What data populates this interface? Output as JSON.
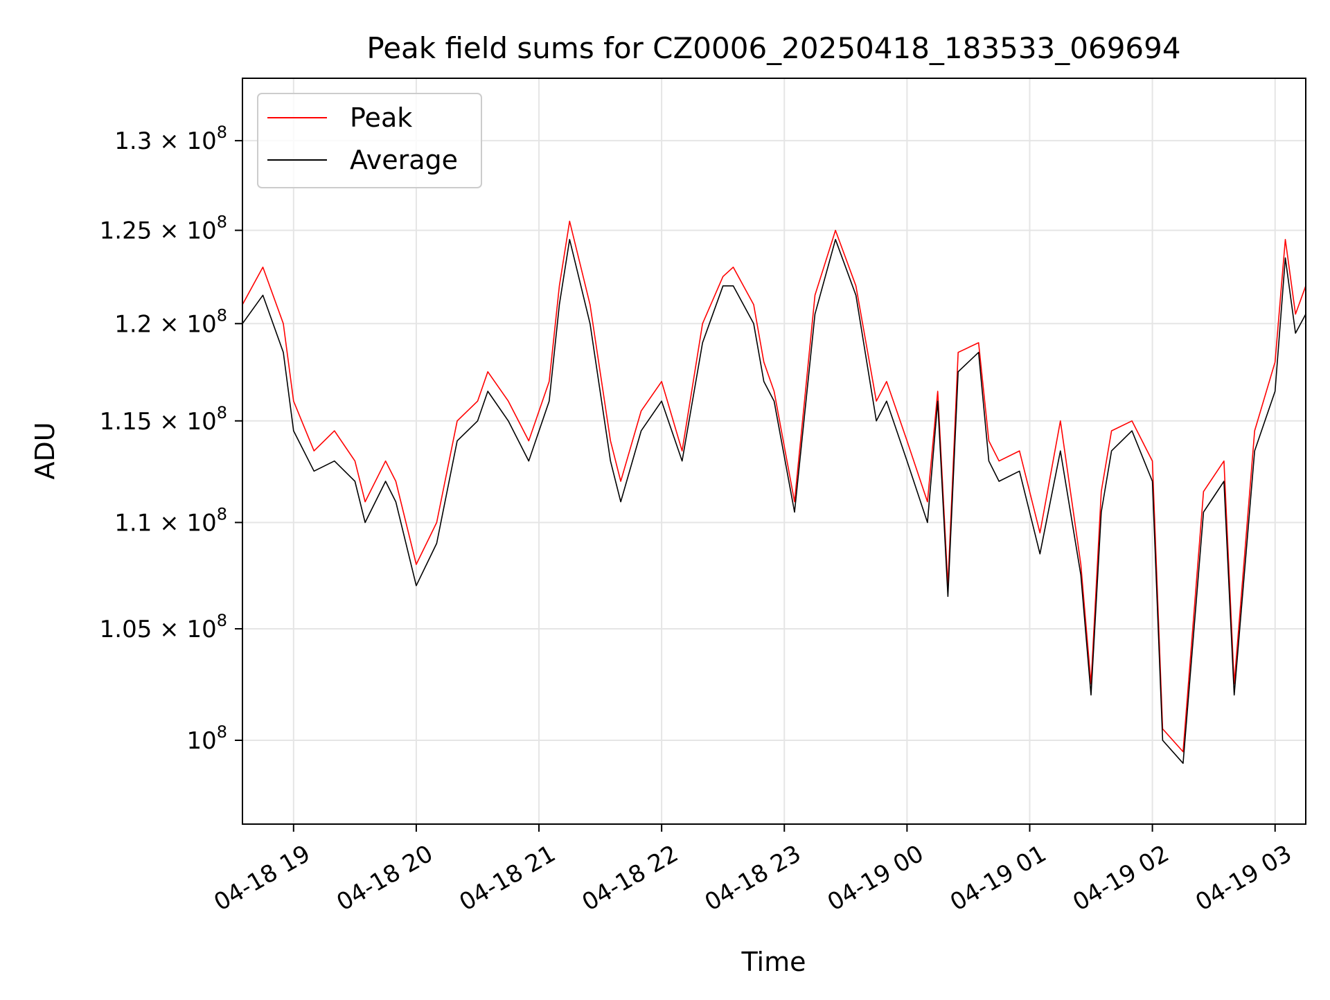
{
  "chart_data": {
    "type": "line",
    "title": "Peak field sums for CZ0006_20250418_183533_069694",
    "xlabel": "Time",
    "ylabel": "ADU",
    "y_scale": "log",
    "xlim": [
      "2025-04-18 18:35",
      "2025-04-19 03:15"
    ],
    "ylim": [
      96400000,
      133600000
    ],
    "x_ticks": [
      "2025-04-18 19:00",
      "2025-04-18 20:00",
      "2025-04-18 21:00",
      "2025-04-18 22:00",
      "2025-04-18 23:00",
      "2025-04-19 00:00",
      "2025-04-19 01:00",
      "2025-04-19 02:00",
      "2025-04-19 03:00"
    ],
    "x_tick_labels": [
      "04-18 19",
      "04-18 20",
      "04-18 21",
      "04-18 22",
      "04-18 23",
      "04-19 00",
      "04-19 01",
      "04-19 02",
      "04-19 03"
    ],
    "y_ticks": [
      {
        "value": 100000000,
        "mantissa": "",
        "exponent": "8"
      },
      {
        "value": 105000000,
        "mantissa": "1.05 × 10",
        "exponent": "8"
      },
      {
        "value": 110000000,
        "mantissa": "1.1 × 10",
        "exponent": "8"
      },
      {
        "value": 115000000,
        "mantissa": "1.15 × 10",
        "exponent": "8"
      },
      {
        "value": 120000000,
        "mantissa": "1.2 × 10",
        "exponent": "8"
      },
      {
        "value": 125000000,
        "mantissa": "1.25 × 10",
        "exponent": "8"
      },
      {
        "value": 130000000,
        "mantissa": "1.3 × 10",
        "exponent": "8"
      }
    ],
    "grid": true,
    "legend_position": "upper left",
    "series": [
      {
        "name": "Peak",
        "color": "#ff0000",
        "x": [
          "2025-04-18 18:35",
          "2025-04-18 18:45",
          "2025-04-18 18:55",
          "2025-04-18 19:00",
          "2025-04-18 19:10",
          "2025-04-18 19:20",
          "2025-04-18 19:30",
          "2025-04-18 19:35",
          "2025-04-18 19:45",
          "2025-04-18 19:50",
          "2025-04-18 20:00",
          "2025-04-18 20:10",
          "2025-04-18 20:20",
          "2025-04-18 20:30",
          "2025-04-18 20:35",
          "2025-04-18 20:45",
          "2025-04-18 20:55",
          "2025-04-18 21:05",
          "2025-04-18 21:10",
          "2025-04-18 21:15",
          "2025-04-18 21:25",
          "2025-04-18 21:35",
          "2025-04-18 21:40",
          "2025-04-18 21:50",
          "2025-04-18 22:00",
          "2025-04-18 22:10",
          "2025-04-18 22:20",
          "2025-04-18 22:30",
          "2025-04-18 22:35",
          "2025-04-18 22:45",
          "2025-04-18 22:50",
          "2025-04-18 22:55",
          "2025-04-18 23:05",
          "2025-04-18 23:15",
          "2025-04-18 23:25",
          "2025-04-18 23:35",
          "2025-04-18 23:45",
          "2025-04-18 23:50",
          "2025-04-19 00:00",
          "2025-04-19 00:10",
          "2025-04-19 00:15",
          "2025-04-19 00:20",
          "2025-04-19 00:25",
          "2025-04-19 00:35",
          "2025-04-19 00:40",
          "2025-04-19 00:45",
          "2025-04-19 00:55",
          "2025-04-19 01:05",
          "2025-04-19 01:15",
          "2025-04-19 01:25",
          "2025-04-19 01:30",
          "2025-04-19 01:35",
          "2025-04-19 01:40",
          "2025-04-19 01:50",
          "2025-04-19 02:00",
          "2025-04-19 02:05",
          "2025-04-19 02:15",
          "2025-04-19 02:25",
          "2025-04-19 02:35",
          "2025-04-19 02:40",
          "2025-04-19 02:50",
          "2025-04-19 03:00",
          "2025-04-19 03:05",
          "2025-04-19 03:10",
          "2025-04-19 03:15"
        ],
        "values": [
          121000000,
          123000000,
          120000000,
          116000000,
          113500000,
          114500000,
          113000000,
          111000000,
          113000000,
          112000000,
          108000000,
          110000000,
          115000000,
          116000000,
          117500000,
          116000000,
          114000000,
          117000000,
          122000000,
          125500000,
          121000000,
          114000000,
          112000000,
          115500000,
          117000000,
          113500000,
          120000000,
          122500000,
          123000000,
          121000000,
          118000000,
          116500000,
          111000000,
          121500000,
          125000000,
          122000000,
          116000000,
          117000000,
          114000000,
          111000000,
          116500000,
          107000000,
          118500000,
          119000000,
          114000000,
          113000000,
          113500000,
          109500000,
          115000000,
          108000000,
          102500000,
          111500000,
          114500000,
          115000000,
          113000000,
          100500000,
          99500000,
          111500000,
          113000000,
          102500000,
          114500000,
          118000000,
          124500000,
          120500000,
          122000000
        ]
      },
      {
        "name": "Average",
        "color": "#000000",
        "x": [
          "2025-04-18 18:35",
          "2025-04-18 18:45",
          "2025-04-18 18:55",
          "2025-04-18 19:00",
          "2025-04-18 19:10",
          "2025-04-18 19:20",
          "2025-04-18 19:30",
          "2025-04-18 19:35",
          "2025-04-18 19:45",
          "2025-04-18 19:50",
          "2025-04-18 20:00",
          "2025-04-18 20:10",
          "2025-04-18 20:20",
          "2025-04-18 20:30",
          "2025-04-18 20:35",
          "2025-04-18 20:45",
          "2025-04-18 20:55",
          "2025-04-18 21:05",
          "2025-04-18 21:10",
          "2025-04-18 21:15",
          "2025-04-18 21:25",
          "2025-04-18 21:35",
          "2025-04-18 21:40",
          "2025-04-18 21:50",
          "2025-04-18 22:00",
          "2025-04-18 22:10",
          "2025-04-18 22:20",
          "2025-04-18 22:30",
          "2025-04-18 22:35",
          "2025-04-18 22:45",
          "2025-04-18 22:50",
          "2025-04-18 22:55",
          "2025-04-18 23:05",
          "2025-04-18 23:15",
          "2025-04-18 23:25",
          "2025-04-18 23:35",
          "2025-04-18 23:45",
          "2025-04-18 23:50",
          "2025-04-19 00:00",
          "2025-04-19 00:10",
          "2025-04-19 00:15",
          "2025-04-19 00:20",
          "2025-04-19 00:25",
          "2025-04-19 00:35",
          "2025-04-19 00:40",
          "2025-04-19 00:45",
          "2025-04-19 00:55",
          "2025-04-19 01:05",
          "2025-04-19 01:15",
          "2025-04-19 01:25",
          "2025-04-19 01:30",
          "2025-04-19 01:35",
          "2025-04-19 01:40",
          "2025-04-19 01:50",
          "2025-04-19 02:00",
          "2025-04-19 02:05",
          "2025-04-19 02:15",
          "2025-04-19 02:25",
          "2025-04-19 02:35",
          "2025-04-19 02:40",
          "2025-04-19 02:50",
          "2025-04-19 03:00",
          "2025-04-19 03:05",
          "2025-04-19 03:10",
          "2025-04-19 03:15"
        ],
        "values": [
          120000000,
          121500000,
          118500000,
          114500000,
          112500000,
          113000000,
          112000000,
          110000000,
          112000000,
          111000000,
          107000000,
          109000000,
          114000000,
          115000000,
          116500000,
          115000000,
          113000000,
          116000000,
          121000000,
          124500000,
          120000000,
          113000000,
          111000000,
          114500000,
          116000000,
          113000000,
          119000000,
          122000000,
          122000000,
          120000000,
          117000000,
          116000000,
          110500000,
          120500000,
          124500000,
          121500000,
          115000000,
          116000000,
          113000000,
          110000000,
          116000000,
          106500000,
          117500000,
          118500000,
          113000000,
          112000000,
          112500000,
          108500000,
          113500000,
          107500000,
          102000000,
          110500000,
          113500000,
          114500000,
          112000000,
          100000000,
          99000000,
          110500000,
          112000000,
          102000000,
          113500000,
          116500000,
          123500000,
          119500000,
          120500000
        ]
      }
    ]
  }
}
